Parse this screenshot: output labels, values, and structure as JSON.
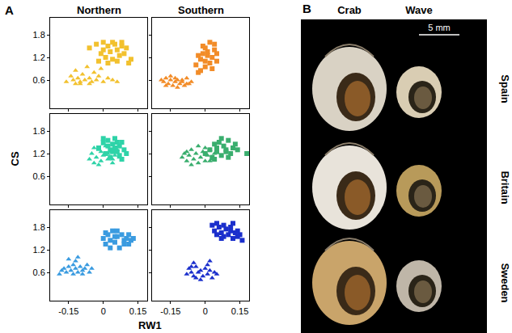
{
  "chart_data": [
    {
      "type": "scatter",
      "title": "Northern",
      "xlim": [
        -0.23,
        0.19
      ],
      "ylim": [
        -0.15,
        2.25
      ],
      "xticks": [
        -0.15,
        0,
        0.15
      ],
      "yticks": [
        0.6,
        1.2,
        1.8
      ],
      "tick_labels": "y",
      "series": [
        {
          "color": "#F2C12E",
          "marker": "square",
          "x": [
            -0.06,
            -0.03,
            -0.01,
            0.0,
            0.01,
            0.02,
            0.03,
            0.04,
            0.05,
            0.06,
            0.07,
            0.08,
            0.09,
            0.1,
            0.11,
            0.02,
            0.04,
            -0.02,
            0.06,
            0.12,
            0.0,
            0.08
          ],
          "values": [
            1.45,
            1.55,
            1.3,
            1.6,
            1.2,
            1.5,
            1.35,
            1.15,
            1.55,
            1.4,
            1.25,
            1.5,
            1.3,
            1.45,
            1.05,
            1.05,
            1.6,
            1.1,
            1.1,
            1.15,
            1.4,
            1.6
          ]
        },
        {
          "color": "#F2C12E",
          "marker": "triangle",
          "x": [
            -0.16,
            -0.14,
            -0.13,
            -0.12,
            -0.11,
            -0.1,
            -0.09,
            -0.08,
            -0.07,
            -0.06,
            -0.05,
            -0.04,
            -0.03,
            -0.02,
            0.0,
            0.02,
            0.04,
            -0.1,
            -0.06,
            -0.12,
            0.06,
            -0.01
          ],
          "values": [
            0.55,
            0.7,
            0.6,
            0.85,
            0.65,
            0.55,
            0.75,
            0.6,
            0.95,
            0.65,
            0.55,
            0.8,
            0.6,
            0.7,
            0.55,
            0.65,
            0.6,
            0.5,
            0.5,
            0.5,
            0.55,
            0.9
          ]
        }
      ]
    },
    {
      "type": "scatter",
      "title": "Southern",
      "xlim": [
        -0.23,
        0.19
      ],
      "ylim": [
        -0.15,
        2.25
      ],
      "xticks": [
        -0.15,
        0,
        0.15
      ],
      "yticks": [
        0.6,
        1.2,
        1.8
      ],
      "tick_labels": false,
      "series": [
        {
          "color": "#F28C28",
          "marker": "triangle",
          "x": [
            -0.19,
            -0.18,
            -0.17,
            -0.16,
            -0.15,
            -0.14,
            -0.13,
            -0.12,
            -0.11,
            -0.1,
            -0.09,
            -0.08,
            -0.07,
            -0.06,
            -0.15,
            -0.12,
            -0.17,
            -0.1,
            -0.13,
            -0.08
          ],
          "values": [
            0.6,
            0.55,
            0.65,
            0.5,
            0.6,
            0.45,
            0.55,
            0.6,
            0.5,
            0.55,
            0.45,
            0.65,
            0.5,
            0.55,
            0.7,
            0.4,
            0.45,
            0.6,
            0.65,
            0.5
          ]
        },
        {
          "color": "#F28C28",
          "marker": "square",
          "x": [
            -0.04,
            -0.03,
            -0.02,
            -0.01,
            0.0,
            0.01,
            0.02,
            0.03,
            0.04,
            0.05,
            -0.02,
            0.0,
            0.02,
            0.04,
            -0.03,
            0.01,
            0.03,
            0.05,
            0.0,
            -0.01
          ],
          "values": [
            1.0,
            1.25,
            0.85,
            1.5,
            1.1,
            1.35,
            1.6,
            1.2,
            1.4,
            1.3,
            1.15,
            0.95,
            1.05,
            1.55,
            0.8,
            1.25,
            0.9,
            1.1,
            1.45,
            1.3
          ]
        }
      ]
    },
    {
      "type": "scatter",
      "xlim": [
        -0.23,
        0.19
      ],
      "ylim": [
        -0.15,
        2.25
      ],
      "xticks": [
        -0.15,
        0,
        0.15
      ],
      "yticks": [
        0.6,
        1.2,
        1.8
      ],
      "tick_labels": "y",
      "series": [
        {
          "color": "#2ED3A8",
          "marker": "triangle",
          "x": [
            -0.06,
            -0.05,
            -0.04,
            -0.03,
            -0.02,
            -0.01,
            0.0,
            0.01,
            0.02,
            0.03,
            0.04,
            0.05,
            0.06,
            -0.04,
            -0.02,
            0.0,
            0.02,
            0.04,
            0.07,
            -0.01
          ],
          "values": [
            1.05,
            1.2,
            0.95,
            1.1,
            1.3,
            1.0,
            1.15,
            1.4,
            1.05,
            1.25,
            0.95,
            1.15,
            1.3,
            1.35,
            0.9,
            1.45,
            1.2,
            1.05,
            1.1,
            1.25
          ]
        },
        {
          "color": "#2ED3A8",
          "marker": "square",
          "x": [
            -0.02,
            0.0,
            0.01,
            0.02,
            0.03,
            0.04,
            0.05,
            0.06,
            0.07,
            0.08,
            0.09,
            0.1,
            0.03,
            0.05,
            0.07,
            0.02,
            0.06,
            0.08,
            0.04,
            0.0
          ],
          "values": [
            1.35,
            1.5,
            1.2,
            1.55,
            1.3,
            1.45,
            1.6,
            1.25,
            1.4,
            1.5,
            1.3,
            1.2,
            1.1,
            1.35,
            1.15,
            1.4,
            1.5,
            1.05,
            1.25,
            1.6
          ]
        }
      ]
    },
    {
      "type": "scatter",
      "xlim": [
        -0.23,
        0.19
      ],
      "ylim": [
        -0.15,
        2.25
      ],
      "xticks": [
        -0.15,
        0,
        0.15
      ],
      "yticks": [
        0.6,
        1.2,
        1.8
      ],
      "tick_labels": false,
      "series": [
        {
          "color": "#3AAE6E",
          "marker": "triangle",
          "x": [
            -0.1,
            -0.09,
            -0.08,
            -0.07,
            -0.06,
            -0.05,
            -0.04,
            -0.03,
            -0.02,
            -0.01,
            0.0,
            0.01,
            0.02,
            0.03,
            0.04,
            -0.06,
            -0.03,
            0.0,
            -0.08,
            0.02
          ],
          "values": [
            1.1,
            1.2,
            1.0,
            1.15,
            1.3,
            1.05,
            1.2,
            0.95,
            1.1,
            1.25,
            1.0,
            1.15,
            1.3,
            1.05,
            1.2,
            0.9,
            1.4,
            1.35,
            1.25,
            1.0
          ]
        },
        {
          "color": "#3AAE6E",
          "marker": "square",
          "x": [
            0.0,
            0.02,
            0.03,
            0.04,
            0.05,
            0.06,
            0.07,
            0.08,
            0.09,
            0.1,
            0.11,
            0.12,
            0.13,
            0.04,
            0.07,
            0.1,
            0.05,
            0.09,
            0.14,
            0.18
          ],
          "values": [
            1.2,
            1.3,
            1.1,
            1.45,
            1.25,
            1.5,
            1.15,
            1.4,
            1.3,
            1.55,
            1.2,
            1.35,
            1.45,
            1.05,
            1.6,
            1.1,
            1.35,
            1.25,
            1.3,
            1.2
          ]
        }
      ]
    },
    {
      "type": "scatter",
      "xlim": [
        -0.23,
        0.19
      ],
      "ylim": [
        -0.15,
        2.25
      ],
      "xticks": [
        -0.15,
        0,
        0.15
      ],
      "yticks": [
        0.6,
        1.2,
        1.8
      ],
      "tick_labels": true,
      "series": [
        {
          "color": "#3A9BE0",
          "marker": "triangle",
          "x": [
            -0.19,
            -0.18,
            -0.17,
            -0.16,
            -0.15,
            -0.14,
            -0.13,
            -0.12,
            -0.11,
            -0.1,
            -0.09,
            -0.08,
            -0.07,
            -0.06,
            -0.05,
            -0.15,
            -0.12,
            -0.09,
            -0.13,
            -0.11
          ],
          "values": [
            0.55,
            0.65,
            0.7,
            0.6,
            0.75,
            0.65,
            0.8,
            0.7,
            0.6,
            0.75,
            0.65,
            0.7,
            0.8,
            0.6,
            0.7,
            0.95,
            0.9,
            0.55,
            0.55,
            1.0
          ]
        },
        {
          "color": "#3A9BE0",
          "marker": "square",
          "x": [
            0.0,
            0.01,
            0.02,
            0.03,
            0.04,
            0.05,
            0.06,
            0.07,
            0.08,
            0.09,
            0.1,
            0.11,
            0.12,
            0.13,
            0.03,
            0.06,
            0.09,
            0.05,
            0.01,
            0.11
          ],
          "values": [
            1.5,
            1.35,
            1.6,
            1.45,
            1.7,
            1.4,
            1.55,
            1.25,
            1.6,
            1.45,
            1.5,
            1.35,
            1.45,
            1.5,
            1.25,
            1.7,
            1.35,
            1.55,
            1.65,
            1.6
          ]
        }
      ]
    },
    {
      "type": "scatter",
      "xlim": [
        -0.23,
        0.19
      ],
      "ylim": [
        -0.15,
        2.25
      ],
      "xticks": [
        -0.15,
        0,
        0.15
      ],
      "yticks": [
        0.6,
        1.2,
        1.8
      ],
      "tick_labels": "x",
      "series": [
        {
          "color": "#1B2FCC",
          "marker": "triangle",
          "x": [
            -0.08,
            -0.07,
            -0.06,
            -0.05,
            -0.04,
            -0.03,
            -0.02,
            -0.01,
            0.0,
            0.01,
            0.02,
            0.03,
            0.04,
            0.05,
            -0.05,
            -0.02,
            0.01,
            -0.04,
            0.02,
            -0.06
          ],
          "values": [
            0.55,
            0.7,
            0.6,
            0.5,
            0.75,
            0.6,
            0.65,
            0.5,
            0.7,
            0.55,
            0.65,
            0.45,
            0.6,
            0.55,
            0.85,
            0.4,
            0.8,
            0.45,
            0.9,
            0.75
          ]
        },
        {
          "color": "#1B2FCC",
          "marker": "square",
          "x": [
            0.03,
            0.04,
            0.05,
            0.06,
            0.07,
            0.08,
            0.09,
            0.1,
            0.11,
            0.12,
            0.13,
            0.14,
            0.15,
            0.16,
            0.05,
            0.08,
            0.11,
            0.14,
            0.07,
            0.12
          ],
          "values": [
            1.85,
            1.7,
            1.6,
            1.8,
            1.65,
            1.55,
            1.75,
            1.6,
            1.7,
            1.5,
            1.65,
            1.55,
            1.6,
            1.45,
            1.9,
            1.85,
            1.8,
            1.7,
            1.5,
            1.9
          ]
        }
      ]
    }
  ],
  "figure": {
    "panel_labels": [
      "A",
      "B"
    ],
    "y_label": "CS",
    "x_label": "RW1",
    "photo_panel": {
      "columns": [
        "Crab",
        "Wave"
      ],
      "rows": [
        "Spain",
        "Britain",
        "Sweden"
      ],
      "scale_bar": "5 mm"
    }
  }
}
